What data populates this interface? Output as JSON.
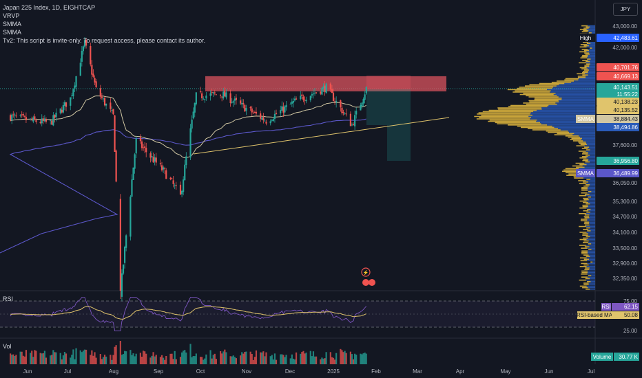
{
  "legend": {
    "title": "Japan 225 Index, 1D, EIGHTCAP",
    "lines": [
      "VRVP",
      "SMMA",
      "SMMA",
      "Tv2: This script is invite-only. To request access, please contact its author."
    ]
  },
  "currency_button": "JPY",
  "rsi_title": "RSI",
  "vol_title": "Vol",
  "colors": {
    "background": "#131722",
    "up": "#26a69a",
    "down": "#ef5350",
    "smma_fast": "#d1c7a3",
    "smma_slow": "#5b57c9",
    "trendline": "#e0c46c",
    "rsi": "#7e57c2",
    "rsi_ma": "#e0c46c",
    "resistance": "#d9535e",
    "vp_up": "#c8a43a",
    "vp_down": "#2a5bb8"
  },
  "chart_data": {
    "type": "candlestick",
    "symbol": "Japan 225 Index",
    "timeframe": "1D",
    "source": "EIGHTCAP",
    "x_labels": [
      "Jun",
      "Jul",
      "Aug",
      "Sep",
      "Oct",
      "Nov",
      "Dec",
      "2025",
      "Feb",
      "Mar",
      "Apr",
      "May",
      "Jun",
      "Jul"
    ],
    "y_ticks": [
      "43,000.00",
      "42,000.00",
      "37,600.00",
      "36,050.00",
      "35,300.00",
      "34,700.00",
      "34,100.00",
      "33,500.00",
      "32,900.00",
      "32,350.00"
    ],
    "ylim": [
      31800,
      43600
    ],
    "close_series": [
      {
        "date": "2024-05-20",
        "close": 38900
      },
      {
        "date": "2024-06-03",
        "close": 38700
      },
      {
        "date": "2024-06-17",
        "close": 38600
      },
      {
        "date": "2024-07-01",
        "close": 39700
      },
      {
        "date": "2024-07-11",
        "close": 42200
      },
      {
        "date": "2024-07-19",
        "close": 40100
      },
      {
        "date": "2024-07-31",
        "close": 38900
      },
      {
        "date": "2024-08-05",
        "close": 31800
      },
      {
        "date": "2024-08-16",
        "close": 37800
      },
      {
        "date": "2024-09-06",
        "close": 36400
      },
      {
        "date": "2024-09-16",
        "close": 35500
      },
      {
        "date": "2024-09-27",
        "close": 39800
      },
      {
        "date": "2024-10-15",
        "close": 39900
      },
      {
        "date": "2024-11-15",
        "close": 38700
      },
      {
        "date": "2024-12-06",
        "close": 39600
      },
      {
        "date": "2024-12-27",
        "close": 40200
      },
      {
        "date": "2025-01-14",
        "close": 38500
      },
      {
        "date": "2025-01-24",
        "close": 40143.51
      }
    ],
    "price_labels": [
      {
        "name": "High",
        "value": "42,483.61",
        "color": "#ffffff"
      },
      {
        "name": "",
        "value": "40,701.76",
        "color": "#ef5350"
      },
      {
        "name": "",
        "value": "40,669.13",
        "color": "#ef5350"
      },
      {
        "name": "",
        "value": "40,143.51",
        "color": "#26a69a"
      },
      {
        "name": "",
        "value": "11:55:22",
        "color": "#26a69a"
      },
      {
        "name": "",
        "value": "40,138.23",
        "color": "#e0c46c"
      },
      {
        "name": "",
        "value": "40,135.52",
        "color": "#e0c46c"
      },
      {
        "name": "SMMA",
        "value": "38,884.43",
        "color": "#d1c7a3"
      },
      {
        "name": "",
        "value": "38,494.86",
        "color": "#2a5bb8"
      },
      {
        "name": "",
        "value": "36,956.80",
        "color": "#26a69a"
      },
      {
        "name": "SMMA",
        "value": "36,489.99",
        "color": "#5b57c9"
      }
    ],
    "rsi": {
      "ticks": [
        "75.00",
        "25.00"
      ],
      "value_label": "RSI",
      "value": "62.15",
      "ma_label": "RSI-based MA",
      "ma_value": "50.08"
    },
    "volume": {
      "label": "Volume",
      "value": "30.77 K"
    }
  }
}
